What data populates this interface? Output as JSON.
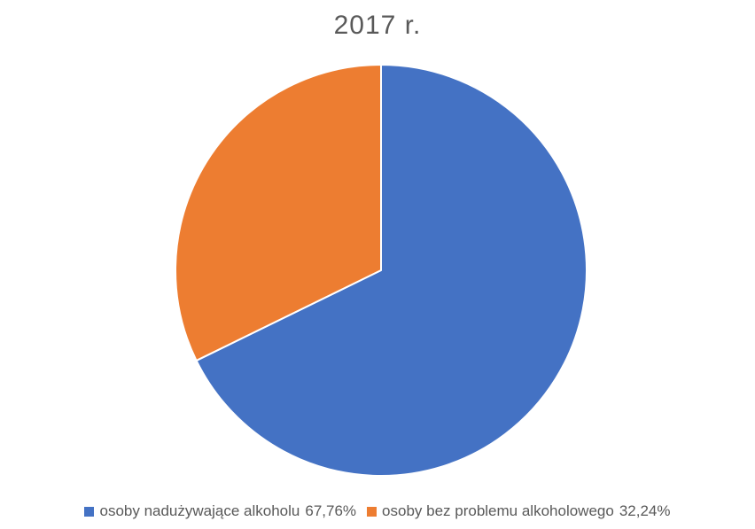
{
  "chart_data": {
    "type": "pie",
    "title": "2017 r.",
    "slices": [
      {
        "label": "osoby nadużywające alkoholu",
        "value": 67.76,
        "value_label": "67,76%",
        "color": "#4472c4"
      },
      {
        "label": "osoby bez problemu alkoholowego",
        "value": 32.24,
        "value_label": "32,24%",
        "color": "#ed7d31"
      }
    ],
    "start_angle_deg": 0,
    "direction": "clockwise",
    "legend_position": "bottom",
    "slice_border_color": "#ffffff"
  }
}
